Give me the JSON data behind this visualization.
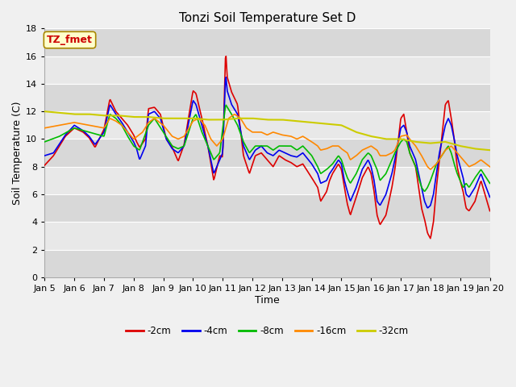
{
  "title": "Tonzi Soil Temperature Set D",
  "xlabel": "Time",
  "ylabel": "Soil Temperature (C)",
  "ylim": [
    0,
    18
  ],
  "xlim": [
    0,
    15
  ],
  "fig_bg": "#f0f0f0",
  "plot_bg": "#e8e8e8",
  "legend_labels": [
    "-2cm",
    "-4cm",
    "-8cm",
    "-16cm",
    "-32cm"
  ],
  "legend_colors": [
    "#dd0000",
    "#0000ee",
    "#00bb00",
    "#ff8800",
    "#cccc00"
  ],
  "xtick_labels": [
    "Jan 5",
    "Jan 6",
    "Jan 7",
    "Jan 8",
    "Jan 9",
    "Jan 10",
    "Jan 11",
    "Jan 12",
    "Jan 13",
    "Jan 14",
    "Jan 15",
    "Jan 16",
    "Jan 17",
    "Jan 18",
    "Jan 19",
    "Jan 20"
  ],
  "ytick_vals": [
    0,
    2,
    4,
    6,
    8,
    10,
    12,
    14,
    16,
    18
  ],
  "annotation_text": "TZ_fmet",
  "annotation_color": "#cc0000",
  "annotation_bg": "#ffffcc",
  "annotation_border": "#aa8800",
  "grid_color": "#ffffff",
  "band_colors": [
    "#d8d8d8",
    "#e8e8e8"
  ],
  "title_fontsize": 11,
  "axis_fontsize": 9,
  "tick_fontsize": 8,
  "linewidth": 1.2
}
